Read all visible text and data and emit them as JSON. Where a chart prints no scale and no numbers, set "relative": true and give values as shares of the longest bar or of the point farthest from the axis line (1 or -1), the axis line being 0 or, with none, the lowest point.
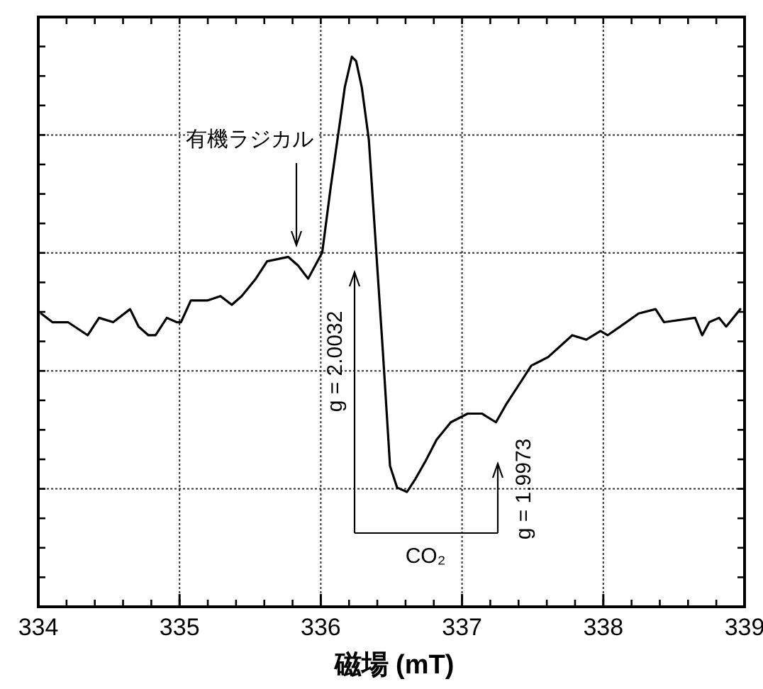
{
  "chart_data": {
    "type": "line",
    "relative": true,
    "xlabel": "磁場 (mT)",
    "xlim": [
      334,
      339
    ],
    "xticks": [
      334,
      335,
      336,
      337,
      338,
      339
    ],
    "grid": true,
    "series": [
      {
        "color": "#000000",
        "x": [
          334.02,
          334.1,
          334.21,
          334.35,
          334.43,
          334.53,
          334.65,
          334.71,
          334.78,
          334.83,
          334.91,
          334.98,
          335.01,
          335.08,
          335.2,
          335.29,
          335.37,
          335.44,
          335.54,
          335.62,
          335.77,
          335.84,
          335.91,
          335.96,
          336.01,
          336.07,
          336.14,
          336.17,
          336.22,
          336.25,
          336.29,
          336.34,
          336.44,
          336.49,
          336.54,
          336.61,
          336.67,
          336.74,
          336.82,
          336.92,
          337.04,
          337.14,
          337.24,
          337.31,
          337.41,
          337.49,
          337.61,
          337.78,
          337.88,
          337.98,
          338.03,
          338.12,
          338.25,
          338.37,
          338.43,
          338.65,
          338.7,
          338.75,
          338.82,
          338.87,
          338.97
        ],
        "values": [
          0.41,
          0.39,
          0.39,
          0.36,
          0.4,
          0.39,
          0.42,
          0.38,
          0.36,
          0.36,
          0.4,
          0.39,
          0.39,
          0.44,
          0.44,
          0.45,
          0.43,
          0.45,
          0.49,
          0.53,
          0.54,
          0.52,
          0.49,
          0.52,
          0.55,
          0.7,
          0.86,
          0.93,
          1,
          0.99,
          0.93,
          0.81,
          0.32,
          0.06,
          0.01,
          0,
          0.03,
          0.07,
          0.12,
          0.16,
          0.18,
          0.18,
          0.16,
          0.2,
          0.25,
          0.29,
          0.31,
          0.36,
          0.35,
          0.37,
          0.36,
          0.38,
          0.41,
          0.42,
          0.39,
          0.4,
          0.36,
          0.39,
          0.4,
          0.38,
          0.42
        ]
      }
    ],
    "annotations": [
      "有機ラジカル",
      "g = 2.0032",
      "g = 1.9973",
      "CO₂"
    ]
  }
}
